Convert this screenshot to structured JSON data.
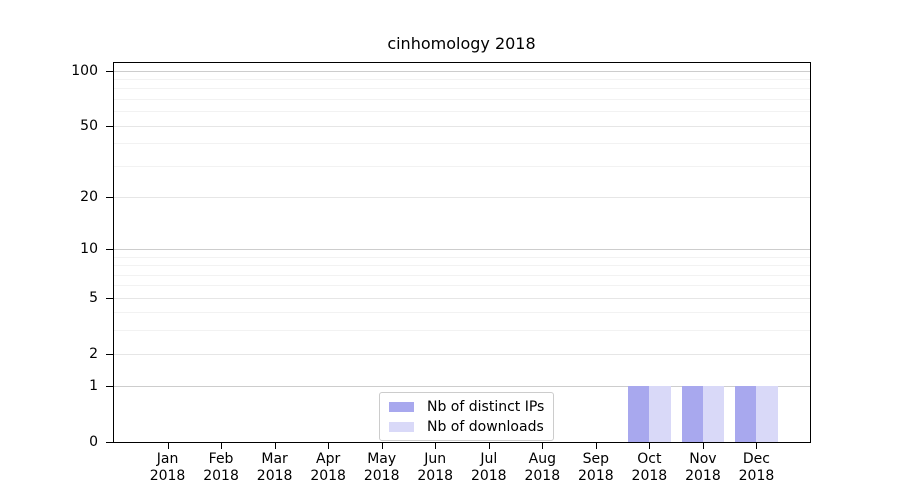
{
  "chart_data": {
    "type": "bar",
    "title": "cinhomology 2018",
    "categories": [
      "Jan",
      "Feb",
      "Mar",
      "Apr",
      "May",
      "Jun",
      "Jul",
      "Aug",
      "Sep",
      "Oct",
      "Nov",
      "Dec"
    ],
    "x_tick_second_line": "2018",
    "series": [
      {
        "name": "Nb of distinct IPs",
        "color": "#a8a8ee",
        "values": [
          0,
          0,
          0,
          0,
          0,
          0,
          0,
          0,
          0,
          1,
          1,
          1
        ]
      },
      {
        "name": "Nb of downloads",
        "color": "#d9d9f8",
        "values": [
          0,
          0,
          0,
          0,
          0,
          0,
          0,
          0,
          0,
          1,
          1,
          1
        ]
      }
    ],
    "y_axis": {
      "scale": "log1p",
      "tick_values": [
        0,
        1,
        2,
        5,
        10,
        20,
        50,
        100
      ],
      "minor_tick_values": [
        3,
        4,
        6,
        7,
        8,
        9,
        30,
        40,
        60,
        70,
        80,
        90
      ],
      "axis_max": 110
    },
    "grid": true,
    "bar_width_fraction": 0.4,
    "legend": {
      "position": "lower-center"
    },
    "frame_color": "#000000",
    "gridline_colors": {
      "decade": "#cdcdcd",
      "major": "#e6e6e6",
      "minor": "#f2f2f2"
    }
  }
}
